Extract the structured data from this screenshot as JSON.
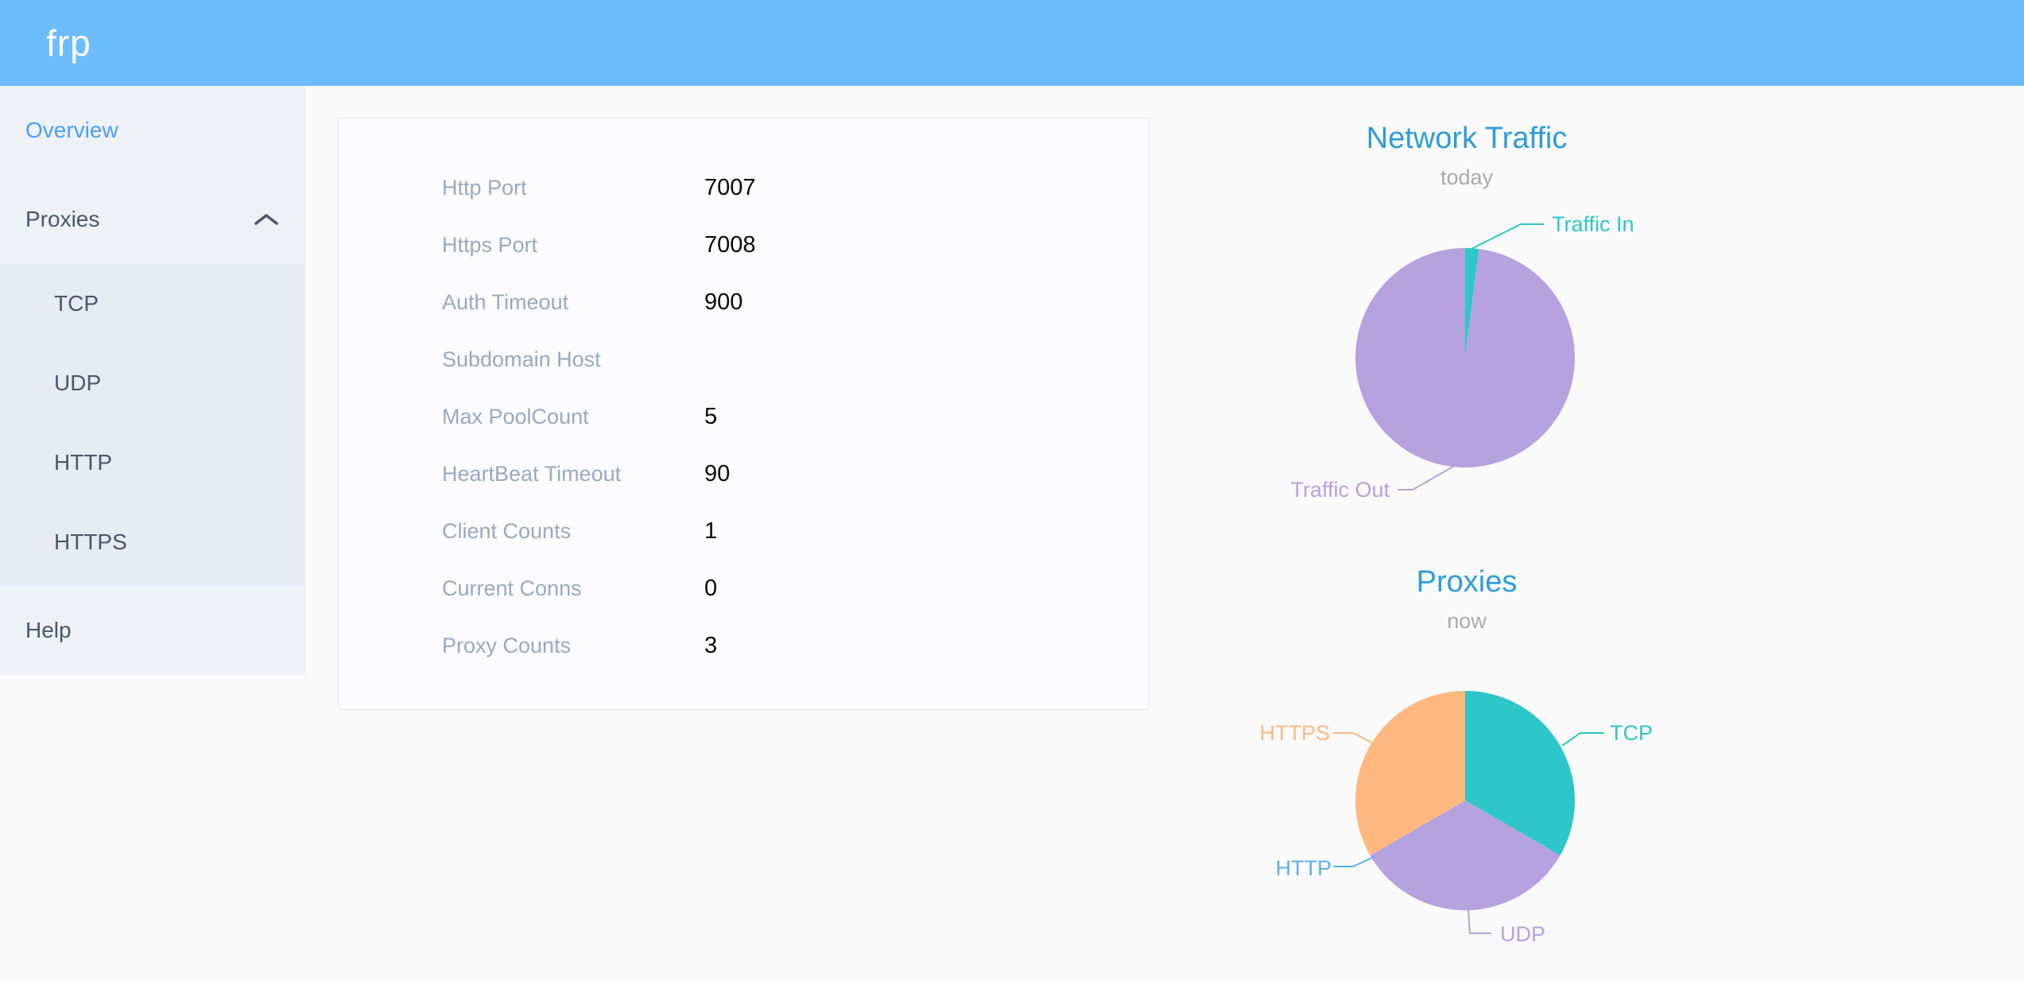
{
  "header": {
    "logo_text": "frp",
    "background_color": "#6dbdfd"
  },
  "sidebar": {
    "background_color": "#eef1f6",
    "submenu_background_color": "#e7ebf3",
    "text_color": "#48576a",
    "active_text_color": "#4aa0f8",
    "items": [
      {
        "label": "Overview",
        "active": true
      },
      {
        "label": "Proxies",
        "expanded": true,
        "children": [
          "TCP",
          "UDP",
          "HTTP",
          "HTTPS"
        ]
      },
      {
        "label": "Help"
      }
    ]
  },
  "server_info": {
    "rows": [
      {
        "label": "Http Port",
        "value": "7007"
      },
      {
        "label": "Https Port",
        "value": "7008"
      },
      {
        "label": "Auth Timeout",
        "value": "900"
      },
      {
        "label": "Subdomain Host",
        "value": ""
      },
      {
        "label": "Max PoolCount",
        "value": "5"
      },
      {
        "label": "HeartBeat Timeout",
        "value": "90"
      },
      {
        "label": "Client Counts",
        "value": "1"
      },
      {
        "label": "Current Conns",
        "value": "0"
      },
      {
        "label": "Proxy Counts",
        "value": "3"
      }
    ]
  },
  "chart_data": [
    {
      "type": "pie",
      "title": "Network Traffic",
      "subtitle": "today",
      "title_color": "#2d9cdb",
      "subtitle_color": "#aaaaaa",
      "start_angle_deg_from_top": 0,
      "direction": "clockwise",
      "values_unit": "percent (estimated from slice angles, raw byte values not shown)",
      "series": [
        {
          "name": "Traffic In",
          "value": 2,
          "color": "#2ec7c9"
        },
        {
          "name": "Traffic Out",
          "value": 98,
          "color": "#b6a2de"
        }
      ],
      "legend_position": "callout-labels"
    },
    {
      "type": "pie",
      "title": "Proxies",
      "subtitle": "now",
      "title_color": "#2d9cdb",
      "subtitle_color": "#aaaaaa",
      "start_angle_deg_from_top": 0,
      "direction": "clockwise",
      "values_unit": "count",
      "series": [
        {
          "name": "TCP",
          "value": 1,
          "color": "#2ec7c9"
        },
        {
          "name": "UDP",
          "value": 1,
          "color": "#b6a2de"
        },
        {
          "name": "HTTP",
          "value": 0,
          "color": "#5ab1ef"
        },
        {
          "name": "HTTPS",
          "value": 1,
          "color": "#ffb980"
        }
      ],
      "legend_position": "callout-labels"
    }
  ]
}
